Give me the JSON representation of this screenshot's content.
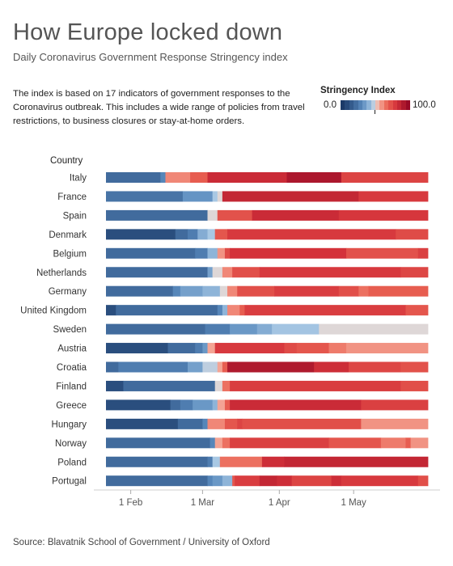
{
  "title": "How Europe locked down",
  "subtitle": "Daily Coronavirus Government Response Stringency index",
  "description": "The index is based on 17 indicators of government responses to the Coronavirus outbreak. This includes a wide range of policies from travel restrictions, to business closures or stay-at-home orders.",
  "legend": {
    "title": "Stringency Index",
    "min_label": "0.0",
    "max_label": "100.0"
  },
  "source": "Source: Blavatnik School of Government / University of Oxford",
  "chart_data": {
    "type": "heatmap",
    "row_header": "Country",
    "x_axis": {
      "start": "2020-01-22",
      "end": "2020-05-31",
      "ticks": [
        {
          "date": "2020-02-01",
          "label": "1 Feb"
        },
        {
          "date": "2020-03-01",
          "label": "1 Mar"
        },
        {
          "date": "2020-04-01",
          "label": "1 Apr"
        },
        {
          "date": "2020-05-01",
          "label": "1 May"
        }
      ]
    },
    "value_range": [
      0,
      100
    ],
    "series": [
      {
        "name": "Italy",
        "segments": [
          {
            "start": "2020-01-22",
            "end": "2020-02-13",
            "value": 19
          },
          {
            "start": "2020-02-13",
            "end": "2020-02-15",
            "value": 28
          },
          {
            "start": "2020-02-15",
            "end": "2020-02-25",
            "value": 62
          },
          {
            "start": "2020-02-25",
            "end": "2020-03-03",
            "value": 70
          },
          {
            "start": "2020-03-03",
            "end": "2020-04-04",
            "value": 85
          },
          {
            "start": "2020-04-04",
            "end": "2020-04-26",
            "value": 94
          },
          {
            "start": "2020-04-26",
            "end": "2020-05-31",
            "value": 77
          }
        ]
      },
      {
        "name": "France",
        "segments": [
          {
            "start": "2020-01-22",
            "end": "2020-02-22",
            "value": 22
          },
          {
            "start": "2020-02-22",
            "end": "2020-03-05",
            "value": 32
          },
          {
            "start": "2020-03-05",
            "end": "2020-03-07",
            "value": 45
          },
          {
            "start": "2020-03-07",
            "end": "2020-03-09",
            "value": 50
          },
          {
            "start": "2020-03-09",
            "end": "2020-05-03",
            "value": 87
          },
          {
            "start": "2020-05-03",
            "end": "2020-05-31",
            "value": 80
          }
        ]
      },
      {
        "name": "Spain",
        "segments": [
          {
            "start": "2020-01-22",
            "end": "2020-03-03",
            "value": 19
          },
          {
            "start": "2020-03-03",
            "end": "2020-03-07",
            "value": 50
          },
          {
            "start": "2020-03-07",
            "end": "2020-03-21",
            "value": 73
          },
          {
            "start": "2020-03-21",
            "end": "2020-04-25",
            "value": 85
          },
          {
            "start": "2020-04-25",
            "end": "2020-05-31",
            "value": 81
          }
        ]
      },
      {
        "name": "Denmark",
        "segments": [
          {
            "start": "2020-01-22",
            "end": "2020-02-19",
            "value": 8
          },
          {
            "start": "2020-02-19",
            "end": "2020-02-24",
            "value": 19
          },
          {
            "start": "2020-02-24",
            "end": "2020-02-28",
            "value": 25
          },
          {
            "start": "2020-02-28",
            "end": "2020-03-03",
            "value": 38
          },
          {
            "start": "2020-03-03",
            "end": "2020-03-06",
            "value": 45
          },
          {
            "start": "2020-03-06",
            "end": "2020-03-11",
            "value": 72
          },
          {
            "start": "2020-03-11",
            "end": "2020-05-18",
            "value": 80
          },
          {
            "start": "2020-05-18",
            "end": "2020-05-31",
            "value": 75
          }
        ]
      },
      {
        "name": "Belgium",
        "segments": [
          {
            "start": "2020-01-22",
            "end": "2020-02-27",
            "value": 19
          },
          {
            "start": "2020-02-27",
            "end": "2020-03-03",
            "value": 25
          },
          {
            "start": "2020-03-03",
            "end": "2020-03-07",
            "value": 40
          },
          {
            "start": "2020-03-07",
            "end": "2020-03-10",
            "value": 60
          },
          {
            "start": "2020-03-10",
            "end": "2020-03-12",
            "value": 75
          },
          {
            "start": "2020-03-12",
            "end": "2020-04-28",
            "value": 82
          },
          {
            "start": "2020-04-28",
            "end": "2020-05-27",
            "value": 73
          },
          {
            "start": "2020-05-27",
            "end": "2020-05-31",
            "value": 78
          }
        ]
      },
      {
        "name": "Netherlands",
        "segments": [
          {
            "start": "2020-01-22",
            "end": "2020-03-03",
            "value": 19
          },
          {
            "start": "2020-03-03",
            "end": "2020-03-05",
            "value": 35
          },
          {
            "start": "2020-03-05",
            "end": "2020-03-09",
            "value": 50
          },
          {
            "start": "2020-03-09",
            "end": "2020-03-13",
            "value": 62
          },
          {
            "start": "2020-03-13",
            "end": "2020-03-24",
            "value": 74
          },
          {
            "start": "2020-03-24",
            "end": "2020-05-20",
            "value": 80
          },
          {
            "start": "2020-05-20",
            "end": "2020-05-31",
            "value": 76
          }
        ]
      },
      {
        "name": "Germany",
        "segments": [
          {
            "start": "2020-01-22",
            "end": "2020-02-18",
            "value": 19
          },
          {
            "start": "2020-02-18",
            "end": "2020-02-21",
            "value": 28
          },
          {
            "start": "2020-02-21",
            "end": "2020-03-01",
            "value": 35
          },
          {
            "start": "2020-03-01",
            "end": "2020-03-08",
            "value": 40
          },
          {
            "start": "2020-03-08",
            "end": "2020-03-11",
            "value": 50
          },
          {
            "start": "2020-03-11",
            "end": "2020-03-15",
            "value": 62
          },
          {
            "start": "2020-03-15",
            "end": "2020-03-30",
            "value": 74
          },
          {
            "start": "2020-03-30",
            "end": "2020-04-25",
            "value": 79
          },
          {
            "start": "2020-04-25",
            "end": "2020-05-03",
            "value": 74
          },
          {
            "start": "2020-05-03",
            "end": "2020-05-07",
            "value": 66
          },
          {
            "start": "2020-05-07",
            "end": "2020-05-31",
            "value": 70
          }
        ]
      },
      {
        "name": "United Kingdom",
        "segments": [
          {
            "start": "2020-01-22",
            "end": "2020-01-26",
            "value": 8
          },
          {
            "start": "2020-01-26",
            "end": "2020-03-07",
            "value": 19
          },
          {
            "start": "2020-03-07",
            "end": "2020-03-09",
            "value": 28
          },
          {
            "start": "2020-03-09",
            "end": "2020-03-11",
            "value": 40
          },
          {
            "start": "2020-03-11",
            "end": "2020-03-16",
            "value": 62
          },
          {
            "start": "2020-03-16",
            "end": "2020-03-18",
            "value": 70
          },
          {
            "start": "2020-03-18",
            "end": "2020-05-22",
            "value": 79
          },
          {
            "start": "2020-05-22",
            "end": "2020-05-31",
            "value": 72
          }
        ]
      },
      {
        "name": "Sweden",
        "segments": [
          {
            "start": "2020-01-22",
            "end": "2020-03-02",
            "value": 19
          },
          {
            "start": "2020-03-02",
            "end": "2020-03-12",
            "value": 25
          },
          {
            "start": "2020-03-12",
            "end": "2020-03-23",
            "value": 33
          },
          {
            "start": "2020-03-23",
            "end": "2020-03-29",
            "value": 38
          },
          {
            "start": "2020-03-29",
            "end": "2020-04-17",
            "value": 44
          },
          {
            "start": "2020-04-17",
            "end": "2020-05-31",
            "value": 50
          }
        ]
      },
      {
        "name": "Austria",
        "segments": [
          {
            "start": "2020-01-22",
            "end": "2020-02-16",
            "value": 8
          },
          {
            "start": "2020-02-16",
            "end": "2020-02-27",
            "value": 19
          },
          {
            "start": "2020-02-27",
            "end": "2020-03-01",
            "value": 25
          },
          {
            "start": "2020-03-01",
            "end": "2020-03-03",
            "value": 33
          },
          {
            "start": "2020-03-03",
            "end": "2020-03-06",
            "value": 57
          },
          {
            "start": "2020-03-06",
            "end": "2020-04-03",
            "value": 80
          },
          {
            "start": "2020-04-03",
            "end": "2020-04-08",
            "value": 75
          },
          {
            "start": "2020-04-08",
            "end": "2020-04-21",
            "value": 72
          },
          {
            "start": "2020-04-21",
            "end": "2020-04-28",
            "value": 64
          },
          {
            "start": "2020-04-28",
            "end": "2020-05-31",
            "value": 60
          }
        ]
      },
      {
        "name": "Croatia",
        "segments": [
          {
            "start": "2020-01-22",
            "end": "2020-01-27",
            "value": 19
          },
          {
            "start": "2020-01-27",
            "end": "2020-02-24",
            "value": 25
          },
          {
            "start": "2020-02-24",
            "end": "2020-03-01",
            "value": 35
          },
          {
            "start": "2020-03-01",
            "end": "2020-03-07",
            "value": 47
          },
          {
            "start": "2020-03-07",
            "end": "2020-03-09",
            "value": 57
          },
          {
            "start": "2020-03-09",
            "end": "2020-03-11",
            "value": 70
          },
          {
            "start": "2020-03-11",
            "end": "2020-04-15",
            "value": 93
          },
          {
            "start": "2020-04-15",
            "end": "2020-04-29",
            "value": 84
          },
          {
            "start": "2020-04-29",
            "end": "2020-05-20",
            "value": 76
          },
          {
            "start": "2020-05-20",
            "end": "2020-05-31",
            "value": 73
          }
        ]
      },
      {
        "name": "Finland",
        "segments": [
          {
            "start": "2020-01-22",
            "end": "2020-01-29",
            "value": 8
          },
          {
            "start": "2020-01-29",
            "end": "2020-03-06",
            "value": 19
          },
          {
            "start": "2020-03-06",
            "end": "2020-03-09",
            "value": 50
          },
          {
            "start": "2020-03-09",
            "end": "2020-03-12",
            "value": 66
          },
          {
            "start": "2020-03-12",
            "end": "2020-05-20",
            "value": 79
          },
          {
            "start": "2020-05-20",
            "end": "2020-05-31",
            "value": 74
          }
        ]
      },
      {
        "name": "Greece",
        "segments": [
          {
            "start": "2020-01-22",
            "end": "2020-02-17",
            "value": 8
          },
          {
            "start": "2020-02-17",
            "end": "2020-02-21",
            "value": 19
          },
          {
            "start": "2020-02-21",
            "end": "2020-02-26",
            "value": 25
          },
          {
            "start": "2020-02-26",
            "end": "2020-03-05",
            "value": 33
          },
          {
            "start": "2020-03-05",
            "end": "2020-03-07",
            "value": 40
          },
          {
            "start": "2020-03-07",
            "end": "2020-03-10",
            "value": 57
          },
          {
            "start": "2020-03-10",
            "end": "2020-03-12",
            "value": 70
          },
          {
            "start": "2020-03-12",
            "end": "2020-05-04",
            "value": 85
          },
          {
            "start": "2020-05-04",
            "end": "2020-05-31",
            "value": 78
          }
        ]
      },
      {
        "name": "Hungary",
        "segments": [
          {
            "start": "2020-01-22",
            "end": "2020-02-20",
            "value": 8
          },
          {
            "start": "2020-02-20",
            "end": "2020-03-01",
            "value": 19
          },
          {
            "start": "2020-03-01",
            "end": "2020-03-03",
            "value": 28
          },
          {
            "start": "2020-03-03",
            "end": "2020-03-10",
            "value": 62
          },
          {
            "start": "2020-03-10",
            "end": "2020-03-15",
            "value": 72
          },
          {
            "start": "2020-03-15",
            "end": "2020-03-17",
            "value": 77
          },
          {
            "start": "2020-03-17",
            "end": "2020-05-04",
            "value": 74
          },
          {
            "start": "2020-05-04",
            "end": "2020-05-31",
            "value": 60
          }
        ]
      },
      {
        "name": "Norway",
        "segments": [
          {
            "start": "2020-01-22",
            "end": "2020-03-04",
            "value": 19
          },
          {
            "start": "2020-03-04",
            "end": "2020-03-06",
            "value": 28
          },
          {
            "start": "2020-03-06",
            "end": "2020-03-09",
            "value": 57
          },
          {
            "start": "2020-03-09",
            "end": "2020-03-12",
            "value": 66
          },
          {
            "start": "2020-03-12",
            "end": "2020-04-21",
            "value": 78
          },
          {
            "start": "2020-04-21",
            "end": "2020-05-12",
            "value": 72
          },
          {
            "start": "2020-05-12",
            "end": "2020-05-22",
            "value": 64
          },
          {
            "start": "2020-05-22",
            "end": "2020-05-24",
            "value": 70
          },
          {
            "start": "2020-05-24",
            "end": "2020-05-31",
            "value": 60
          }
        ]
      },
      {
        "name": "Poland",
        "segments": [
          {
            "start": "2020-01-22",
            "end": "2020-03-03",
            "value": 19
          },
          {
            "start": "2020-03-03",
            "end": "2020-03-05",
            "value": 25
          },
          {
            "start": "2020-03-05",
            "end": "2020-03-08",
            "value": 45
          },
          {
            "start": "2020-03-08",
            "end": "2020-03-25",
            "value": 66
          },
          {
            "start": "2020-03-25",
            "end": "2020-04-03",
            "value": 84
          },
          {
            "start": "2020-04-03",
            "end": "2020-05-31",
            "value": 87
          }
        ]
      },
      {
        "name": "Portugal",
        "segments": [
          {
            "start": "2020-01-22",
            "end": "2020-03-03",
            "value": 19
          },
          {
            "start": "2020-03-03",
            "end": "2020-03-05",
            "value": 28
          },
          {
            "start": "2020-03-05",
            "end": "2020-03-09",
            "value": 33
          },
          {
            "start": "2020-03-09",
            "end": "2020-03-13",
            "value": 40
          },
          {
            "start": "2020-03-13",
            "end": "2020-03-14",
            "value": 72
          },
          {
            "start": "2020-03-14",
            "end": "2020-03-24",
            "value": 79
          },
          {
            "start": "2020-03-24",
            "end": "2020-03-31",
            "value": 87
          },
          {
            "start": "2020-03-31",
            "end": "2020-04-06",
            "value": 84
          },
          {
            "start": "2020-04-06",
            "end": "2020-04-22",
            "value": 77
          },
          {
            "start": "2020-04-22",
            "end": "2020-04-26",
            "value": 84
          },
          {
            "start": "2020-04-26",
            "end": "2020-05-27",
            "value": 80
          },
          {
            "start": "2020-05-27",
            "end": "2020-05-31",
            "value": 74
          }
        ]
      }
    ]
  }
}
